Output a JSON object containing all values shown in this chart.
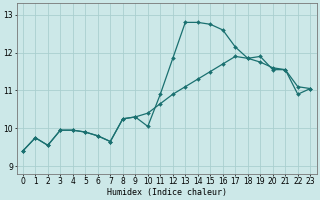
{
  "xlabel": "Humidex (Indice chaleur)",
  "xlim": [
    -0.5,
    23.5
  ],
  "ylim": [
    8.8,
    13.3
  ],
  "yticks": [
    9,
    10,
    11,
    12,
    13
  ],
  "xticks": [
    0,
    1,
    2,
    3,
    4,
    5,
    6,
    7,
    8,
    9,
    10,
    11,
    12,
    13,
    14,
    15,
    16,
    17,
    18,
    19,
    20,
    21,
    22,
    23
  ],
  "bg_color": "#cce8e8",
  "grid_color": "#aacfcf",
  "line_color": "#1a7070",
  "line1_x": [
    0,
    1,
    2,
    3,
    4,
    5,
    6,
    7,
    8,
    9,
    10,
    11,
    12,
    13,
    14,
    15,
    16,
    17,
    18,
    19,
    20,
    21,
    22,
    23
  ],
  "line1_y": [
    9.4,
    9.75,
    9.55,
    9.95,
    9.95,
    9.9,
    9.8,
    9.65,
    10.25,
    10.3,
    10.05,
    10.9,
    11.85,
    12.8,
    12.8,
    12.75,
    12.6,
    12.15,
    11.85,
    11.9,
    11.55,
    11.55,
    10.9,
    11.05
  ],
  "line2_x": [
    0,
    1,
    2,
    3,
    4,
    5,
    6,
    7,
    8,
    9,
    10,
    11,
    12,
    13,
    14,
    15,
    16,
    17,
    18,
    19,
    20,
    21,
    22,
    23
  ],
  "line2_y": [
    9.4,
    9.75,
    9.55,
    9.95,
    9.95,
    9.9,
    9.8,
    9.65,
    10.25,
    10.3,
    10.4,
    10.65,
    10.9,
    11.1,
    11.3,
    11.5,
    11.7,
    11.9,
    11.85,
    11.75,
    11.6,
    11.55,
    11.1,
    11.05
  ],
  "axis_fontsize": 6,
  "tick_fontsize": 5.5,
  "marker_size": 2.0,
  "line_width": 0.9
}
